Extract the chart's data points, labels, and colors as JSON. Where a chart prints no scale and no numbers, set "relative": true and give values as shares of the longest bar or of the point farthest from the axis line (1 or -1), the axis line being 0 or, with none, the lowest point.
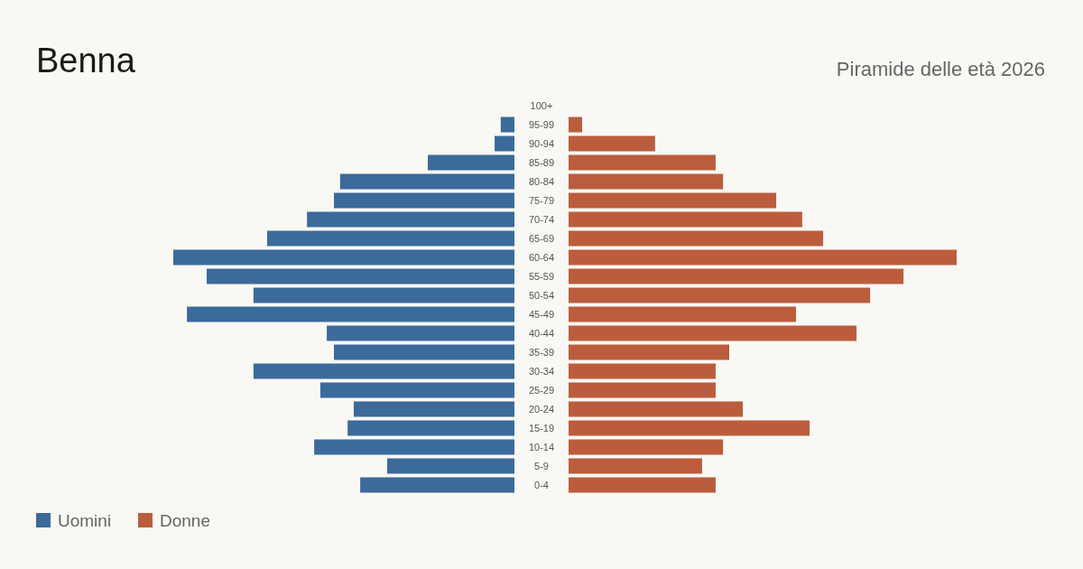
{
  "chart_data": [
    {
      "type": "bar",
      "orientation": "horizontal",
      "relative": true,
      "title": "Benna",
      "legend": "bottom left",
      "tick_labels": false,
      "categories": [
        "100+",
        "95-99",
        "90-94",
        "85-89",
        "80-84",
        "75-79",
        "70-74",
        "65-69",
        "60-64",
        "55-59",
        "50-54",
        "45-49",
        "40-44",
        "35-39",
        "30-34",
        "25-29",
        "20-24",
        "15-19",
        "10-14",
        "5-9",
        "0-4"
      ],
      "series": [
        {
          "name": "Uomini",
          "color": "#3b6a9b",
          "values": [
            0,
            -0.04,
            -0.058,
            -0.254,
            -0.511,
            -0.529,
            -0.608,
            -0.725,
            -1,
            -0.902,
            -0.765,
            -0.96,
            -0.55,
            -0.529,
            -0.765,
            -0.569,
            -0.471,
            -0.489,
            -0.587,
            -0.373,
            -0.452
          ]
        }
      ]
    },
    {
      "type": "bar",
      "orientation": "horizontal",
      "relative": true,
      "subtitle": "Piramide delle età 2026",
      "legend": "bottom left",
      "categories": [
        "100+",
        "95-99",
        "90-94",
        "85-89",
        "80-84",
        "75-79",
        "70-74",
        "65-69",
        "60-64",
        "55-59",
        "50-54",
        "45-49",
        "40-44",
        "35-39",
        "30-34",
        "25-29",
        "20-24",
        "15-19",
        "10-14",
        "5-9",
        "0-4"
      ],
      "series": [
        {
          "name": "Donne",
          "color": "#bb5d3d",
          "values": [
            0,
            0.035,
            0.223,
            0.379,
            0.398,
            0.535,
            0.602,
            0.656,
            1,
            0.863,
            0.777,
            0.586,
            0.742,
            0.414,
            0.379,
            0.379,
            0.449,
            0.621,
            0.398,
            0.344,
            0.379
          ]
        }
      ]
    }
  ]
}
